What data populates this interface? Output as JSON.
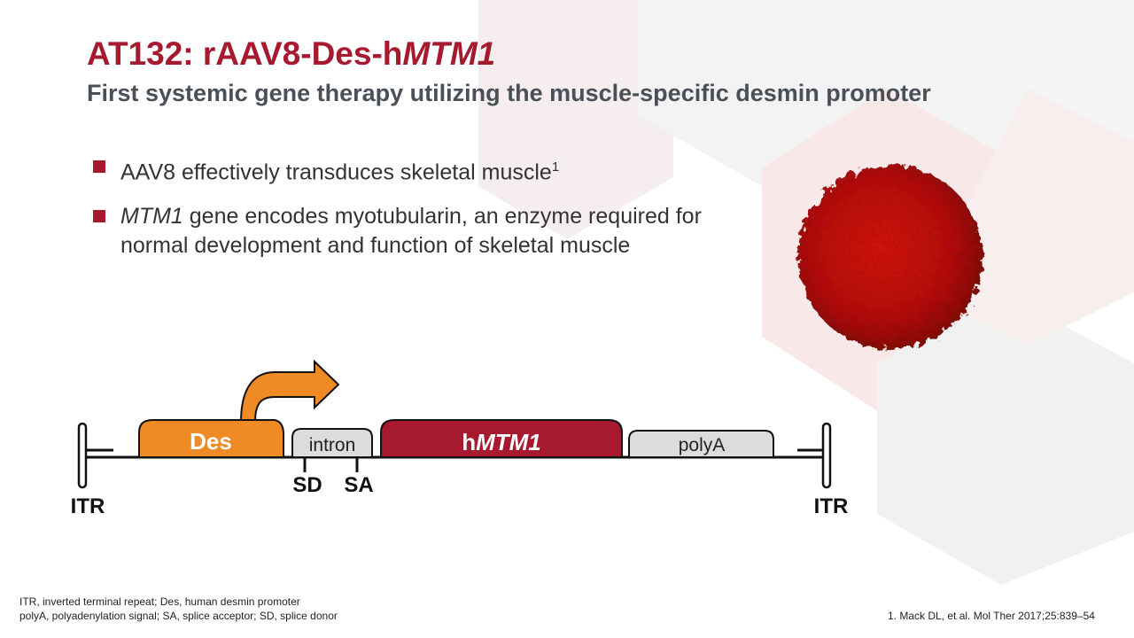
{
  "title": {
    "prefix": "AT132: rAAV8-Des-h",
    "italic": "MTM1"
  },
  "subtitle": "First systemic gene therapy utilizing the muscle-specific desmin promoter",
  "bullets": [
    {
      "text": "AAV8 effectively transduces skeletal muscle",
      "sup": "1"
    },
    {
      "italic": "MTM1",
      "text": " gene encodes myotubularin, an enzyme required for normal development and function of skeletal muscle"
    }
  ],
  "diagram": {
    "itr_left": "ITR",
    "itr_right": "ITR",
    "des": "Des",
    "intron": "intron",
    "gene_prefix": "h",
    "gene_italic": "MTM1",
    "polya": "polyA",
    "sd": "SD",
    "sa": "SA",
    "colors": {
      "des": "#f08a24",
      "gene": "#a6192e",
      "grey": "#dcdcdc"
    }
  },
  "footnotes": [
    "ITR, inverted terminal repeat; Des, human desmin promoter",
    "polyA, polyadenylation signal; SA, splice acceptor; SD, splice donor"
  ],
  "reference": "1. Mack DL, et al. Mol Ther 2017;25:839–54",
  "accent_color": "#a6192e"
}
